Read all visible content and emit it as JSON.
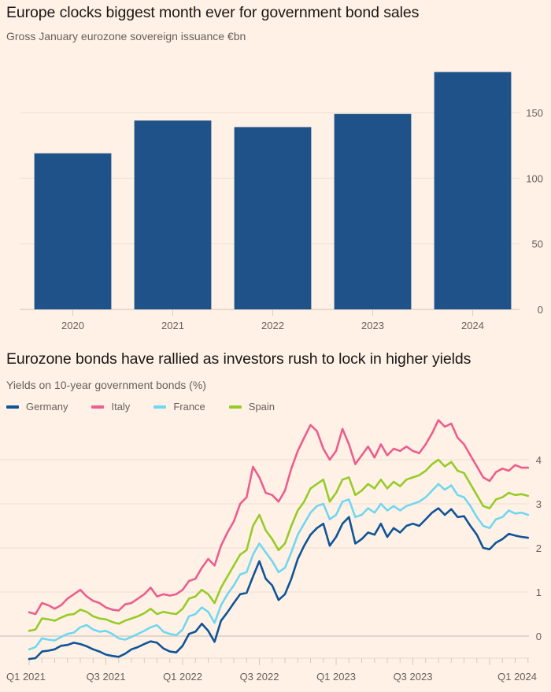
{
  "chart_data": [
    {
      "type": "bar",
      "title": "Europe clocks biggest month ever for government bond sales",
      "subtitle": "Gross January eurozone sovereign issuance €bn",
      "categories": [
        "2020",
        "2021",
        "2022",
        "2023",
        "2024"
      ],
      "values": [
        119,
        144,
        139,
        149,
        181
      ],
      "xlabel": "",
      "ylabel": "",
      "ylim": [
        0,
        185
      ],
      "yticks": [
        0,
        50,
        100,
        150
      ],
      "ytick_labels": [
        "0",
        "50",
        "100",
        "150"
      ],
      "y_axis_side": "right",
      "grid": true,
      "bar_color": "#1f5289"
    },
    {
      "type": "line",
      "title": "Eurozone bonds have rallied as investors rush to lock in higher yields",
      "subtitle": "Yields on 10-year government bonds (%)",
      "x_unit": "months since Jan 2021",
      "x_range": [
        0,
        39
      ],
      "xticks_minor_monthly": true,
      "xtick_labels": [
        {
          "month": 0,
          "label": "Q1 2021"
        },
        {
          "month": 6,
          "label": "Q3 2021"
        },
        {
          "month": 12,
          "label": "Q1 2022"
        },
        {
          "month": 18,
          "label": "Q3 2022"
        },
        {
          "month": 24,
          "label": "Q1 2023"
        },
        {
          "month": 30,
          "label": "Q3 2023"
        },
        {
          "month": 36,
          "label": "Q1 2024"
        }
      ],
      "ylim": [
        -0.6,
        4.9
      ],
      "yticks": [
        0,
        1,
        2,
        3,
        4
      ],
      "ytick_labels": [
        "0",
        "1",
        "2",
        "3",
        "4"
      ],
      "y_axis_side": "right",
      "grid": true,
      "legend_position": "top-left",
      "x": [
        0,
        0.5,
        1,
        1.5,
        2,
        2.5,
        3,
        3.5,
        4,
        4.5,
        5,
        5.5,
        6,
        6.5,
        7,
        7.5,
        8,
        8.5,
        9,
        9.5,
        10,
        10.5,
        11,
        11.5,
        12,
        12.5,
        13,
        13.5,
        14,
        14.5,
        15,
        15.5,
        16,
        16.5,
        17,
        17.5,
        18,
        18.5,
        19,
        19.5,
        20,
        20.5,
        21,
        21.5,
        22,
        22.5,
        23,
        23.5,
        24,
        24.5,
        25,
        25.5,
        26,
        26.5,
        27,
        27.5,
        28,
        28.5,
        29,
        29.5,
        30,
        30.5,
        31,
        31.5,
        32,
        32.5,
        33,
        33.5,
        34,
        34.5,
        35,
        35.5,
        36,
        36.5,
        37,
        37.5,
        38,
        38.5,
        39
      ],
      "series": [
        {
          "name": "Germany",
          "color": "#0f5499",
          "values": [
            -0.52,
            -0.5,
            -0.35,
            -0.33,
            -0.3,
            -0.22,
            -0.2,
            -0.15,
            -0.18,
            -0.23,
            -0.3,
            -0.35,
            -0.42,
            -0.45,
            -0.47,
            -0.4,
            -0.3,
            -0.25,
            -0.18,
            -0.12,
            -0.15,
            -0.28,
            -0.35,
            -0.37,
            -0.22,
            0.05,
            0.1,
            0.28,
            0.12,
            -0.13,
            0.35,
            0.54,
            0.75,
            0.95,
            0.98,
            1.35,
            1.7,
            1.3,
            1.15,
            0.82,
            0.95,
            1.3,
            1.75,
            2.05,
            2.3,
            2.45,
            2.55,
            2.05,
            2.25,
            2.55,
            2.7,
            2.1,
            2.2,
            2.35,
            2.3,
            2.55,
            2.25,
            2.45,
            2.35,
            2.5,
            2.55,
            2.5,
            2.65,
            2.8,
            2.9,
            2.75,
            2.88,
            2.7,
            2.72,
            2.5,
            2.3,
            2.0,
            1.97,
            2.12,
            2.2,
            2.32,
            2.28,
            2.25,
            2.23
          ]
        },
        {
          "name": "Italy",
          "color": "#eb5e8d",
          "values": [
            0.54,
            0.5,
            0.75,
            0.7,
            0.62,
            0.7,
            0.85,
            0.95,
            1.05,
            0.9,
            0.8,
            0.75,
            0.65,
            0.6,
            0.58,
            0.72,
            0.75,
            0.85,
            0.95,
            1.1,
            0.9,
            0.95,
            0.92,
            0.95,
            1.05,
            1.25,
            1.3,
            1.55,
            1.75,
            1.6,
            2.05,
            2.35,
            2.6,
            3.0,
            3.15,
            3.84,
            3.6,
            3.25,
            3.2,
            3.05,
            3.3,
            3.8,
            4.2,
            4.5,
            4.79,
            4.65,
            4.25,
            4.0,
            4.2,
            4.7,
            4.35,
            3.9,
            4.1,
            4.3,
            4.05,
            4.35,
            4.1,
            4.25,
            4.2,
            4.3,
            4.2,
            4.15,
            4.35,
            4.6,
            4.9,
            4.75,
            4.82,
            4.5,
            4.35,
            4.1,
            3.85,
            3.6,
            3.52,
            3.72,
            3.8,
            3.75,
            3.88,
            3.82,
            3.82
          ]
        },
        {
          "name": "France",
          "color": "#71d7f0",
          "values": [
            -0.3,
            -0.25,
            -0.05,
            -0.08,
            -0.1,
            -0.02,
            0.05,
            0.08,
            0.2,
            0.25,
            0.15,
            0.1,
            0.12,
            0.05,
            -0.05,
            -0.08,
            -0.02,
            0.05,
            0.12,
            0.2,
            0.25,
            0.1,
            0.05,
            0.02,
            0.15,
            0.45,
            0.5,
            0.65,
            0.55,
            0.3,
            0.7,
            0.95,
            1.15,
            1.4,
            1.45,
            1.85,
            2.1,
            1.9,
            1.7,
            1.45,
            1.55,
            1.9,
            2.3,
            2.55,
            2.8,
            2.95,
            3.0,
            2.65,
            2.75,
            3.05,
            3.1,
            2.7,
            2.75,
            2.9,
            2.8,
            3.0,
            2.85,
            2.95,
            2.85,
            2.95,
            3.0,
            3.05,
            3.15,
            3.3,
            3.45,
            3.32,
            3.42,
            3.2,
            3.15,
            2.95,
            2.7,
            2.5,
            2.45,
            2.65,
            2.7,
            2.85,
            2.78,
            2.8,
            2.75
          ]
        },
        {
          "name": "Spain",
          "color": "#96cc28",
          "values": [
            0.12,
            0.15,
            0.4,
            0.38,
            0.35,
            0.42,
            0.48,
            0.5,
            0.6,
            0.55,
            0.45,
            0.4,
            0.38,
            0.32,
            0.28,
            0.35,
            0.4,
            0.45,
            0.52,
            0.62,
            0.5,
            0.55,
            0.52,
            0.5,
            0.62,
            0.85,
            0.9,
            1.05,
            0.95,
            0.75,
            1.1,
            1.35,
            1.6,
            1.85,
            1.95,
            2.5,
            2.75,
            2.4,
            2.2,
            1.95,
            2.1,
            2.5,
            2.85,
            3.05,
            3.35,
            3.45,
            3.55,
            3.05,
            3.25,
            3.55,
            3.6,
            3.2,
            3.3,
            3.45,
            3.35,
            3.55,
            3.35,
            3.5,
            3.4,
            3.55,
            3.6,
            3.65,
            3.75,
            3.9,
            4.0,
            3.85,
            3.95,
            3.75,
            3.7,
            3.45,
            3.2,
            2.95,
            2.9,
            3.1,
            3.15,
            3.25,
            3.2,
            3.22,
            3.18
          ]
        }
      ]
    }
  ]
}
